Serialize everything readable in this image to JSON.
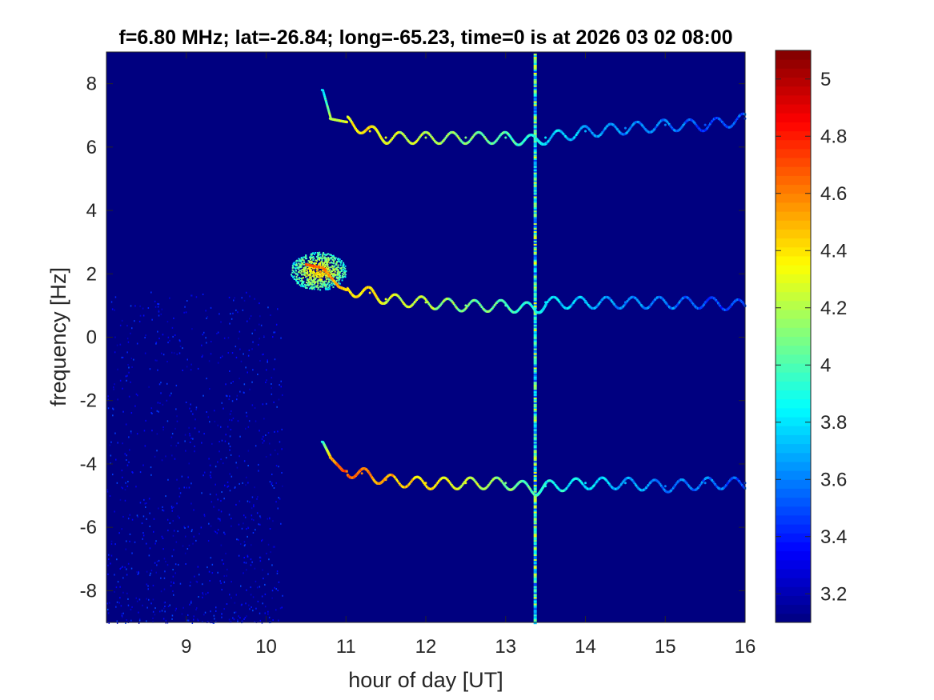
{
  "chart_data": {
    "type": "heatmap",
    "title": "f=6.80 MHz;  lat=-26.84; long=-65.23, time=0 is at 2026 03 02 08:00",
    "xlabel": "hour of day [UT]",
    "ylabel": "frequency [Hz]",
    "xlim": [
      8,
      16
    ],
    "ylim": [
      -9,
      9
    ],
    "x_ticks": [
      9,
      10,
      11,
      12,
      13,
      14,
      15,
      16
    ],
    "y_ticks": [
      -8,
      -6,
      -4,
      -2,
      0,
      2,
      4,
      6,
      8
    ],
    "colorbar": {
      "colormap": "jet",
      "clim": [
        3.1,
        5.1
      ],
      "ticks": [
        3.2,
        3.4,
        3.6,
        3.8,
        4,
        4.2,
        4.4,
        4.6,
        4.8,
        5
      ]
    },
    "background_value": 3.1,
    "series": [
      {
        "kind": "doppler-trace",
        "x": [
          10.7,
          10.8,
          11.0,
          11.3,
          11.5,
          12.0,
          12.5,
          13.0,
          13.37,
          13.5,
          14.0,
          14.5,
          15.0,
          15.5,
          16.0
        ],
        "y": [
          7.8,
          6.9,
          6.8,
          6.5,
          6.3,
          6.3,
          6.3,
          6.3,
          6.2,
          6.3,
          6.5,
          6.6,
          6.7,
          6.7,
          6.9
        ],
        "intensity": [
          3.8,
          4.2,
          4.3,
          4.4,
          4.3,
          4.2,
          4.1,
          4.0,
          3.9,
          3.8,
          3.7,
          3.6,
          3.6,
          3.5,
          3.5
        ]
      },
      {
        "kind": "doppler-trace",
        "x": [
          10.5,
          10.7,
          10.9,
          11.0,
          11.3,
          11.5,
          12.0,
          12.5,
          13.0,
          13.37,
          13.5,
          14.0,
          14.5,
          15.0,
          15.5,
          16.0
        ],
        "y": [
          2.3,
          2.2,
          1.6,
          1.5,
          1.4,
          1.2,
          1.1,
          1.0,
          1.0,
          0.9,
          1.1,
          1.1,
          1.1,
          1.1,
          1.1,
          1.0
        ],
        "intensity": [
          4.7,
          4.6,
          4.5,
          4.4,
          4.4,
          4.3,
          4.2,
          4.1,
          4.0,
          3.9,
          3.8,
          3.7,
          3.6,
          3.6,
          3.5,
          3.5
        ]
      },
      {
        "kind": "doppler-trace",
        "x": [
          10.7,
          10.8,
          10.95,
          11.2,
          11.5,
          12.0,
          12.5,
          13.0,
          13.37,
          13.5,
          14.0,
          14.5,
          15.0,
          15.5,
          16.0
        ],
        "y": [
          -3.3,
          -3.8,
          -4.2,
          -4.3,
          -4.5,
          -4.6,
          -4.6,
          -4.6,
          -4.8,
          -4.7,
          -4.6,
          -4.6,
          -4.7,
          -4.6,
          -4.6
        ],
        "intensity": [
          3.9,
          4.5,
          4.7,
          4.6,
          4.5,
          4.4,
          4.3,
          4.1,
          4.0,
          3.9,
          3.8,
          3.7,
          3.6,
          3.6,
          3.5
        ]
      }
    ],
    "scatter_cloud": {
      "center_x": 10.65,
      "center_y": 2.1,
      "spread_x": 0.35,
      "spread_y": 0.6,
      "intensity": 3.9
    },
    "noise_region": {
      "x_range": [
        8.0,
        10.2
      ],
      "y_range": [
        -9,
        1.5
      ],
      "intensity": 3.35
    },
    "vertical_stripe": {
      "x": 13.37,
      "y_range": [
        -9,
        9
      ],
      "intensity": 3.9
    }
  }
}
